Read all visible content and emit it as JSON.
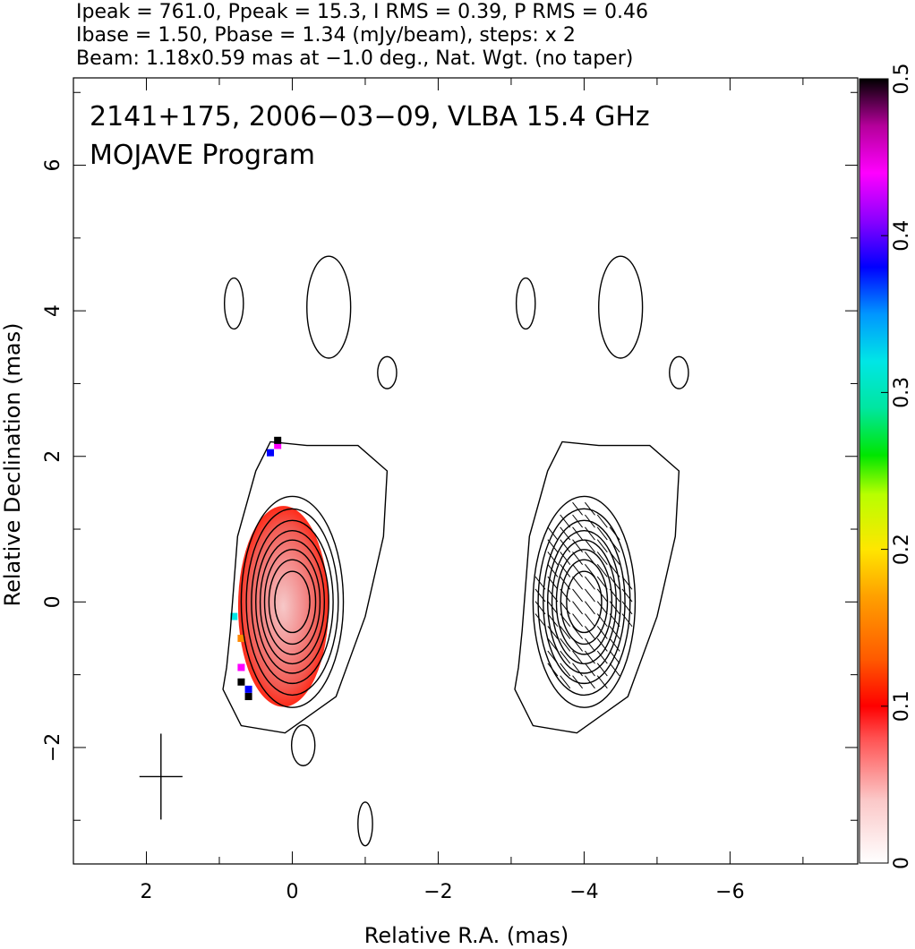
{
  "chart_data": {
    "type": "heatmap",
    "header_lines": [
      "Ipeak = 761.0, Ppeak = 15.3, I RMS = 0.39, P RMS = 0.46",
      "Ibase = 1.50, Pbase = 1.34 (mJy/beam), steps: x 2",
      "Beam: 1.18x0.59 mas at −1.0 deg., Nat. Wgt. (no taper)"
    ],
    "annotations": [
      "2141+175, 2006−03−09, VLBA 15.4 GHz",
      "MOJAVE Program"
    ],
    "xlabel": "Relative R.A. (mas)",
    "ylabel": "Relative Declination (mas)",
    "xlim": [
      3.0,
      -7.75
    ],
    "ylim": [
      -3.6,
      7.2
    ],
    "x_ticks": [
      2,
      0,
      -2,
      -4,
      -6
    ],
    "x_tick_labels": [
      "2",
      "0",
      "−2",
      "−4",
      "−6"
    ],
    "y_ticks": [
      -2,
      0,
      2,
      4,
      6
    ],
    "y_tick_labels": [
      "−2",
      "0",
      "2",
      "4",
      "6"
    ],
    "colorbar": {
      "min": 0,
      "max": 0.5,
      "ticks": [
        0,
        0.1,
        0.2,
        0.3,
        0.4,
        0.5
      ],
      "tick_labels": [
        "0",
        "0.1",
        "0.2",
        "0.3",
        "0.4",
        "0.5"
      ]
    },
    "panels": [
      {
        "name": "total intensity + fractional polarization",
        "x_offset": 0
      },
      {
        "name": "total intensity + EVPA ticks",
        "x_offset": -4
      }
    ],
    "core": {
      "x": 0.0,
      "y": 0.0
    },
    "beam": {
      "major_mas": 1.18,
      "minor_mas": 0.59,
      "pa_deg": -1.0,
      "center": [
        1.8,
        -2.4
      ]
    },
    "intensity_contours_mas": [
      {
        "a": 0.24,
        "b": 0.42
      },
      {
        "a": 0.32,
        "b": 0.58
      },
      {
        "a": 0.38,
        "b": 0.72
      },
      {
        "a": 0.44,
        "b": 0.85
      },
      {
        "a": 0.5,
        "b": 0.98
      },
      {
        "a": 0.56,
        "b": 1.12
      },
      {
        "a": 0.63,
        "b": 1.28
      },
      {
        "a": 0.7,
        "b": 1.45
      }
    ],
    "fractional_pol_samples": [
      {
        "x": 0.8,
        "y": -0.2,
        "v": 0.3
      },
      {
        "x": 0.7,
        "y": -0.5,
        "v": 0.15
      },
      {
        "x": 0.7,
        "y": -0.9,
        "v": 0.45
      },
      {
        "x": 0.7,
        "y": -1.1,
        "v": 0.5
      },
      {
        "x": 0.6,
        "y": -1.2,
        "v": 0.42
      },
      {
        "x": 0.6,
        "y": -1.3,
        "v": 0.5
      },
      {
        "x": 0.3,
        "y": 2.05,
        "v": 0.42
      },
      {
        "x": 0.2,
        "y": 2.15,
        "v": 0.45
      },
      {
        "x": 0.2,
        "y": 2.22,
        "v": 0.5
      }
    ]
  }
}
